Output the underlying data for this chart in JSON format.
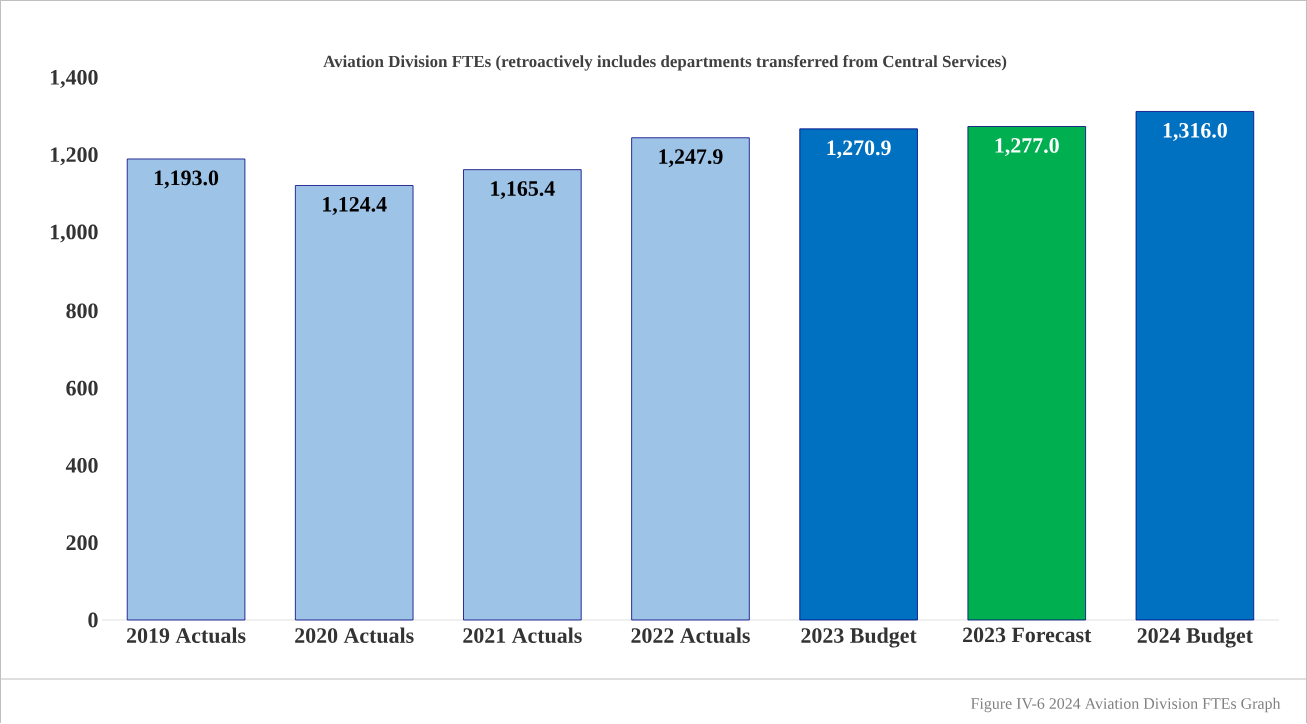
{
  "chart_data": {
    "type": "bar",
    "title": "Aviation Division FTEs (retroactively includes departments transferred from Central Services)",
    "categories": [
      "2019 Actuals",
      "2020 Actuals",
      "2021 Actuals",
      "2022 Actuals",
      "2023 Budget",
      "2023 Forecast",
      "2024 Budget"
    ],
    "values": [
      1193.0,
      1124.4,
      1165.4,
      1247.9,
      1270.9,
      1277.0,
      1316.0
    ],
    "colors": [
      "#9dc3e6",
      "#9dc3e6",
      "#9dc3e6",
      "#9dc3e6",
      "#0070c0",
      "#00b050",
      "#0070c0"
    ],
    "value_labels": [
      "1,193.0",
      "1,124.4",
      "1,165.4",
      "1,247.9",
      "1,270.9",
      "1,277.0",
      "1,316.0"
    ],
    "ylim": [
      0,
      1400
    ],
    "yticks": [
      {
        "value": 0,
        "label": "0"
      },
      {
        "value": 200,
        "label": "200"
      },
      {
        "value": 400,
        "label": "400"
      },
      {
        "value": 600,
        "label": "600"
      },
      {
        "value": 800,
        "label": "800"
      },
      {
        "value": 1000,
        "label": "1,000"
      },
      {
        "value": 1200,
        "label": "1,200"
      },
      {
        "value": 1400,
        "label": "1,400"
      }
    ],
    "grid": false,
    "annotations": [
      "Figure IV-6 2024 Aviation Division FTEs Graph"
    ]
  }
}
